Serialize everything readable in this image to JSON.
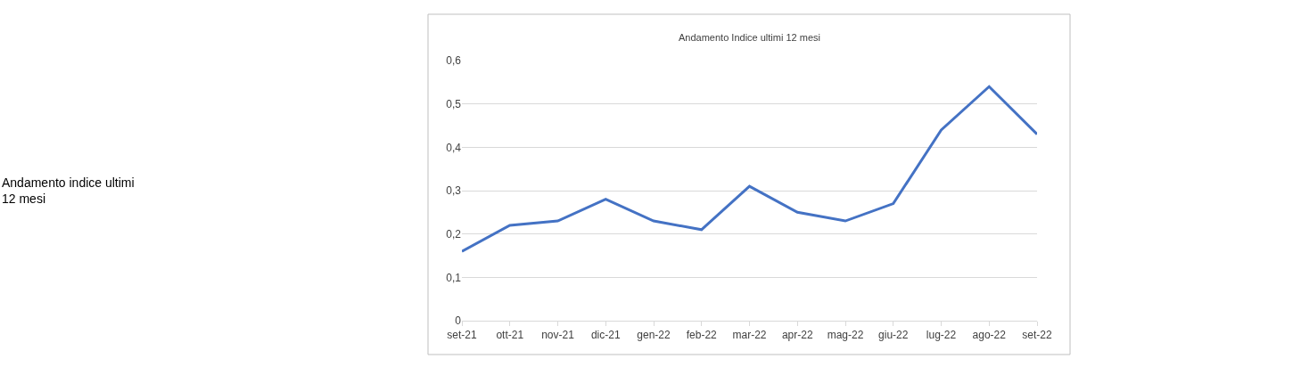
{
  "chart_data": {
    "type": "line",
    "title": "Andamento Indice ultimi 12 mesi",
    "categories": [
      "set-21",
      "ott-21",
      "nov-21",
      "dic-21",
      "gen-22",
      "feb-22",
      "mar-22",
      "apr-22",
      "mag-22",
      "giu-22",
      "lug-22",
      "ago-22",
      "set-22"
    ],
    "series": [
      {
        "color": "#4472c4",
        "values": [
          0.16,
          0.22,
          0.23,
          0.28,
          0.23,
          0.21,
          0.31,
          0.25,
          0.23,
          0.27,
          0.44,
          0.54,
          0.43
        ]
      }
    ],
    "ylim": [
      0,
      0.6
    ],
    "yticks": [
      {
        "value": 0,
        "label": "0"
      },
      {
        "value": 0.1,
        "label": "0,1"
      },
      {
        "value": 0.2,
        "label": "0,2"
      },
      {
        "value": 0.3,
        "label": "0,3"
      },
      {
        "value": 0.4,
        "label": "0,4"
      },
      {
        "value": 0.5,
        "label": "0,5"
      },
      {
        "value": 0.6,
        "label": "0,6"
      }
    ],
    "grid": "y",
    "marker": "none",
    "line_style": "solid",
    "annotations": [
      "Andamento indice ultimi 12 mesi"
    ]
  }
}
